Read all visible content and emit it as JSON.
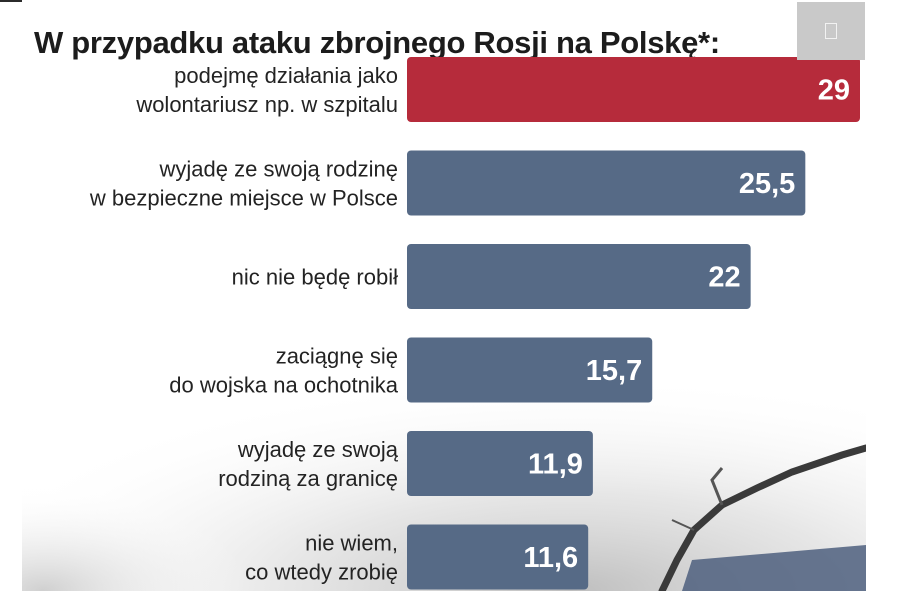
{
  "header": {
    "title": "W przypadku ataku zbrojnego Rosji na Polskę*:"
  },
  "colors": {
    "highlight": "#b62b3b",
    "bar": "#566a86",
    "text": "#232323"
  },
  "icons": {
    "corner_button": "fullscreen-icon"
  },
  "chart_data": {
    "type": "bar",
    "orientation": "horizontal",
    "title": "W przypadku ataku zbrojnego Rosji na Polskę*:",
    "categories": [
      [
        "podejmę działania jako",
        "wolontariusz np. w szpitalu"
      ],
      [
        "wyjadę ze swoją rodzinę",
        "w bezpieczne miejsce w Polsce"
      ],
      [
        "nic nie będę robił"
      ],
      [
        "zaciągnę się",
        "do wojska na ochotnika"
      ],
      [
        "wyjadę ze swoją",
        "rodziną za granicę"
      ],
      [
        "nie wiem,",
        "co wtedy zrobię"
      ]
    ],
    "values": [
      29,
      25.5,
      22,
      15.7,
      11.9,
      11.6
    ],
    "value_labels": [
      "29",
      "25,5",
      "22",
      "15,7",
      "11,9",
      "11,6"
    ],
    "highlighted_index": 0,
    "xlim": [
      0,
      29
    ],
    "grid": false,
    "legend": "none"
  }
}
